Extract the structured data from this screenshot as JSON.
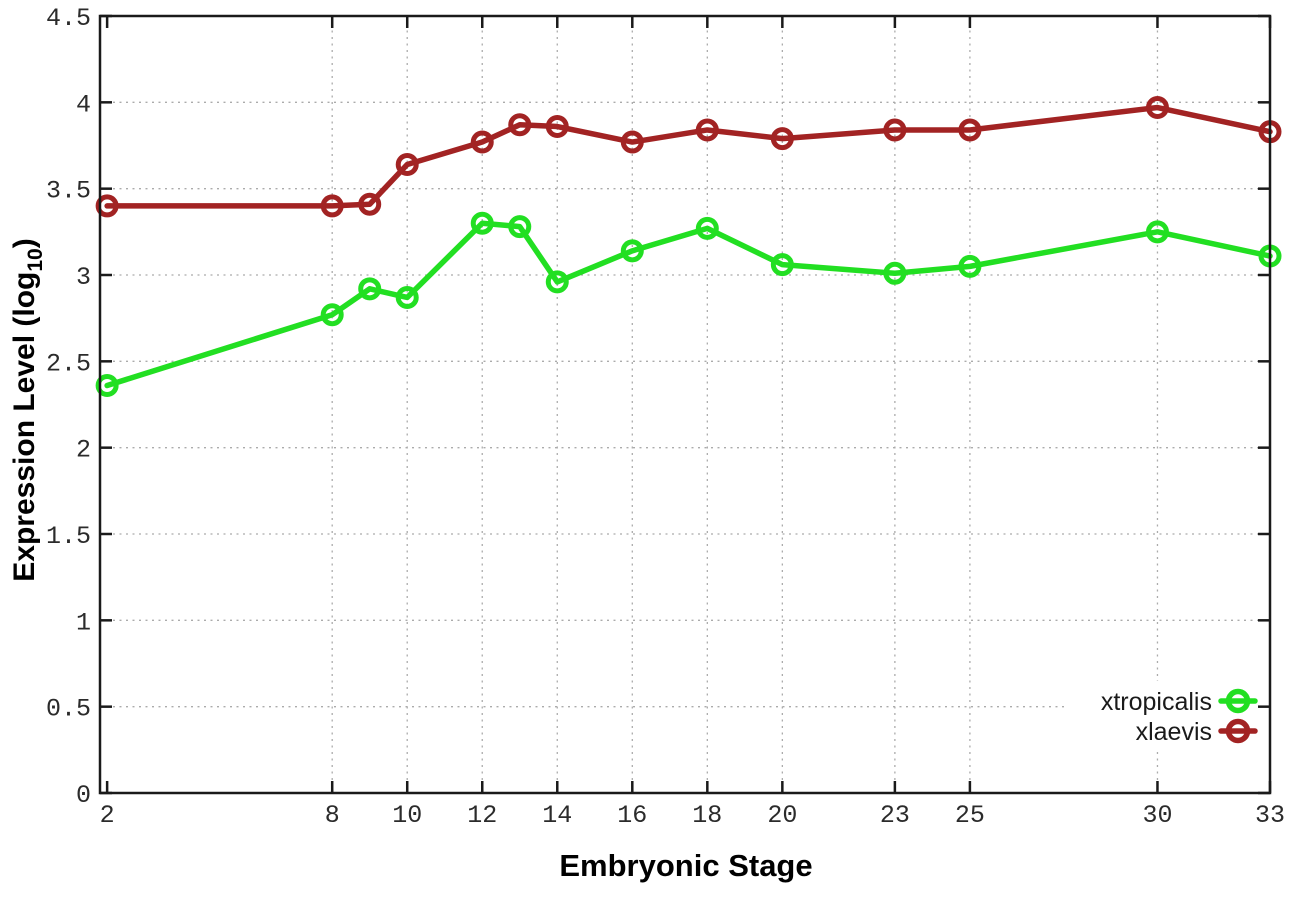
{
  "figure": {
    "background": "#ffffff",
    "border_color": "#1a1a1a",
    "grid_color": "#ababab",
    "tick_label_color": "#2b2b2b",
    "axis_label_color": "#000000"
  },
  "chart_data": {
    "type": "line",
    "title": "",
    "xlabel": "Embryonic Stage",
    "ylabel": "Expression Level (log10)",
    "ylabel_parts": {
      "main": "Expression Level (log",
      "sub": "10",
      "suffix": ")"
    },
    "grid": true,
    "legend_position": "inside-bottom-right",
    "xlim": [
      1.81,
      33
    ],
    "ylim": [
      0,
      4.5
    ],
    "xticks": [
      2,
      8,
      10,
      12,
      14,
      16,
      18,
      20,
      23,
      25,
      30,
      33
    ],
    "yticks": [
      0,
      0.5,
      1,
      1.5,
      2,
      2.5,
      3,
      3.5,
      4,
      4.5
    ],
    "x": [
      2,
      8,
      9,
      10,
      12,
      13,
      14,
      16,
      18,
      20,
      23,
      25,
      30,
      33
    ],
    "series": [
      {
        "name": "xtropicalis",
        "color": "#22df22",
        "marker": "open-circle",
        "values": [
          2.36,
          2.77,
          2.92,
          2.87,
          3.3,
          3.28,
          2.96,
          3.14,
          3.27,
          3.06,
          3.01,
          3.05,
          3.25,
          3.11
        ]
      },
      {
        "name": "xlaevis",
        "color": "#a22323",
        "marker": "open-circle",
        "values": [
          3.4,
          3.4,
          3.41,
          3.64,
          3.77,
          3.87,
          3.86,
          3.77,
          3.84,
          3.79,
          3.84,
          3.84,
          3.97,
          3.83
        ]
      }
    ]
  }
}
